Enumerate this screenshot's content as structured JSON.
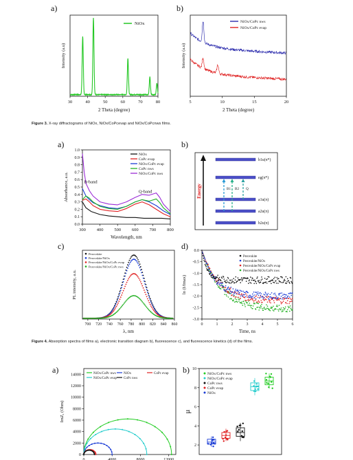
{
  "figure3": {
    "caption_label": "Figure 3.",
    "caption_text": "X-ray diffractograms of NiOx, NiOx/CoPcevap and NiOx/CoPcnws films.",
    "panel_a": {
      "letter": "a)",
      "chart_data": {
        "type": "line",
        "xlabel": "2 Theta (degree)",
        "ylabel": "Intensity (a.u)",
        "xlim": [
          30,
          80
        ],
        "xticks": [
          30,
          40,
          50,
          60,
          70,
          80
        ],
        "legend": "top-right",
        "series": [
          {
            "name": "NiOx",
            "color": "#22c722",
            "peaks": [
              [
                37.2,
                0.72
              ],
              [
                43.3,
                0.95
              ],
              [
                62.9,
                0.45
              ],
              [
                75.4,
                0.22
              ],
              [
                79.4,
                0.14
              ]
            ]
          }
        ]
      }
    },
    "panel_b": {
      "letter": "b)",
      "chart_data": {
        "type": "line",
        "xlabel": "2 Theta (degree)",
        "ylabel": "Intensity (a.u)",
        "xlim": [
          5,
          20
        ],
        "xticks": [
          5,
          10,
          15,
          20
        ],
        "legend": "top-right",
        "series": [
          {
            "name": "NiOx/CoPc nws",
            "color": "#1a1aa6",
            "peaks": [
              [
                7.0,
                0.55
              ]
            ]
          },
          {
            "name": "NiOx/CoPc evap",
            "color": "#d11",
            "peaks": [
              [
                7.0,
                0.28
              ],
              [
                9.3,
                0.22
              ]
            ]
          }
        ]
      }
    }
  },
  "figure4": {
    "caption_label": "Figure 4.",
    "caption_text": "Absorption spectra of films a), electronic transition diagram b), fluorescence c), and fluorescence kinetics (d) of the films.",
    "panel_a": {
      "letter": "a)",
      "chart_data": {
        "type": "line",
        "xlabel": "Wavelength, nm",
        "ylabel": "Absorbance, a.u.",
        "xlim": [
          300,
          800
        ],
        "ylim": [
          0.0,
          1.0
        ],
        "xticks": [
          300,
          400,
          500,
          600,
          700,
          800
        ],
        "yticks": [
          0.0,
          0.1,
          0.2,
          0.3,
          0.4,
          0.5,
          0.6,
          0.7,
          0.8,
          0.9,
          1.0
        ],
        "annotations": [
          "B-band",
          "Q-band"
        ],
        "legend": "top-right",
        "series": [
          {
            "name": "NiOx",
            "color": "#111111",
            "x": [
              300,
              320,
              350,
              400,
              450,
              500,
              550,
              600,
              650,
              700,
              750,
              800
            ],
            "y": [
              0.3,
              0.22,
              0.17,
              0.13,
              0.11,
              0.1,
              0.09,
              0.09,
              0.08,
              0.08,
              0.08,
              0.07
            ]
          },
          {
            "name": "CoPc evap",
            "color": "#e02020",
            "x": [
              300,
              320,
              340,
              360,
              400,
              450,
              500,
              550,
              600,
              640,
              680,
              720,
              760,
              800
            ],
            "y": [
              0.32,
              0.34,
              0.3,
              0.25,
              0.2,
              0.18,
              0.17,
              0.21,
              0.27,
              0.3,
              0.26,
              0.2,
              0.14,
              0.1
            ]
          },
          {
            "name": "NiOx/CoPc evap",
            "color": "#1a3cd6",
            "x": [
              300,
              320,
              340,
              360,
              400,
              450,
              500,
              550,
              600,
              640,
              680,
              720,
              760,
              800
            ],
            "y": [
              0.48,
              0.38,
              0.33,
              0.29,
              0.25,
              0.22,
              0.21,
              0.24,
              0.3,
              0.33,
              0.3,
              0.25,
              0.18,
              0.13
            ]
          },
          {
            "name": "CoPc nws",
            "color": "#22b022",
            "x": [
              300,
              320,
              340,
              360,
              400,
              450,
              500,
              550,
              600,
              640,
              680,
              720,
              740,
              760,
              800
            ],
            "y": [
              0.33,
              0.38,
              0.35,
              0.3,
              0.24,
              0.21,
              0.2,
              0.24,
              0.3,
              0.33,
              0.31,
              0.34,
              0.29,
              0.22,
              0.14
            ]
          },
          {
            "name": "NiOx/CoPc nws",
            "color": "#9a2bd6",
            "x": [
              300,
              310,
              320,
              340,
              360,
              400,
              450,
              500,
              550,
              600,
              640,
              680,
              720,
              740,
              760,
              800
            ],
            "y": [
              0.95,
              0.7,
              0.55,
              0.45,
              0.38,
              0.3,
              0.27,
              0.26,
              0.3,
              0.36,
              0.4,
              0.39,
              0.42,
              0.36,
              0.27,
              0.17
            ]
          }
        ]
      }
    },
    "panel_b": {
      "letter": "b)",
      "energy_label": "Energy",
      "levels": [
        "b1u(π*)",
        "eg(π*)",
        "a1u(π)",
        "a2u(π)",
        "b2u(π)"
      ],
      "transitions": [
        "B1",
        "B2",
        "Q"
      ]
    },
    "panel_c": {
      "letter": "c)",
      "chart_data": {
        "type": "line",
        "xlabel": "λ, nm",
        "ylabel": "PL intensity, a.u.",
        "xlim": [
          690,
          860
        ],
        "xticks": [
          700,
          720,
          740,
          760,
          780,
          800,
          820,
          840,
          860
        ],
        "legend": "top-left",
        "series": [
          {
            "name": "Perovskite",
            "color": "#111111",
            "peak": [
              785,
              0.92
            ]
          },
          {
            "name": "Perovskite/NiOx",
            "color": "#1a3cd6",
            "peak": [
              785,
              0.86
            ]
          },
          {
            "name": "Perovskite/NiOx/CoPc evap",
            "color": "#e02020",
            "peak": [
              785,
              0.65
            ]
          },
          {
            "name": "Perovskite/NiOx/CoPc nws",
            "color": "#22b022",
            "peak": [
              785,
              0.33
            ]
          }
        ]
      }
    },
    "panel_d": {
      "letter": "d)",
      "chart_data": {
        "type": "scatter",
        "xlabel": "Time, ns",
        "ylabel": "ln (I/Imax)",
        "xlim": [
          0,
          6
        ],
        "ylim": [
          -3.0,
          0.0
        ],
        "xticks": [
          0,
          1,
          2,
          3,
          4,
          5,
          6
        ],
        "yticks": [
          0.0,
          -0.5,
          -1.0,
          -1.5,
          -2.0,
          -2.5,
          -3.0
        ],
        "legend": "top-right",
        "series": [
          {
            "name": "Perovskite",
            "color": "#111111",
            "plateau": -1.3,
            "tau": 0.35
          },
          {
            "name": "Perovskite/NiOx",
            "color": "#1a3cd6",
            "plateau": -2.0,
            "tau": 0.9
          },
          {
            "name": "Perovskite/NiOx/CoPc evap",
            "color": "#e02020",
            "plateau": -2.2,
            "tau": 1.1
          },
          {
            "name": "Perovskite/NiOx/CoPc nws",
            "color": "#22b022",
            "plateau": -2.6,
            "tau": 1.3
          }
        ]
      }
    }
  },
  "figure5": {
    "panel_a": {
      "letter": "a)",
      "chart_data": {
        "type": "scatter",
        "xlabel": "ReZ, (Ohm)",
        "ylabel": "ImZ, (Ohm)",
        "xlim": [
          0,
          13000
        ],
        "ylim": [
          0,
          15000
        ],
        "xticks": [
          0,
          4000,
          8000,
          12000
        ],
        "yticks": [
          0,
          2000,
          4000,
          6000,
          8000,
          10000,
          12000,
          14000
        ],
        "legend": "top",
        "series": [
          {
            "name": "NiOx/CoPc nws",
            "color": "#22cc22",
            "semicircle": [
              0,
              12400
            ]
          },
          {
            "name": "NiOx",
            "color": "#1a3cd6",
            "semicircle": [
              0,
              4000
            ]
          },
          {
            "name": "CoPc evap",
            "color": "#e02020",
            "semicircle": [
              0,
              1700
            ]
          },
          {
            "name": "NiOx/CoPc evap",
            "color": "#22cccc",
            "semicircle": [
              0,
              8900
            ]
          },
          {
            "name": "CoPc nws",
            "color": "#111111",
            "semicircle": [
              0,
              1500
            ]
          }
        ]
      }
    },
    "panel_b": {
      "letter": "b)",
      "chart_data": {
        "type": "box",
        "ylabel": "μ",
        "ylim": [
          1,
          10
        ],
        "yticks": [
          2,
          4,
          6,
          8,
          10
        ],
        "legend": "top-left",
        "series": [
          {
            "name": "NiOx/CoPc nws",
            "color": "#22cc22",
            "median": 8.7,
            "q1": 8.3,
            "q3": 9.1,
            "min": 7.9,
            "max": 9.5
          },
          {
            "name": "NiOx/CoPc evap",
            "color": "#22cccc",
            "median": 8.1,
            "q1": 7.7,
            "q3": 8.5,
            "min": 7.2,
            "max": 9.0
          },
          {
            "name": "CoPc nws",
            "color": "#111111",
            "median": 3.3,
            "q1": 2.9,
            "q3": 3.8,
            "min": 2.4,
            "max": 4.3
          },
          {
            "name": "CoPc evap",
            "color": "#e02020",
            "median": 3.0,
            "q1": 2.7,
            "q3": 3.3,
            "min": 2.4,
            "max": 3.7
          },
          {
            "name": "NiOx",
            "color": "#1a3cd6",
            "median": 2.3,
            "q1": 2.1,
            "q3": 2.6,
            "min": 1.8,
            "max": 2.9
          }
        ],
        "order": [
          "NiOx",
          "CoPc evap",
          "CoPc nws",
          "NiOx/CoPc evap",
          "NiOx/CoPc nws"
        ]
      }
    }
  }
}
